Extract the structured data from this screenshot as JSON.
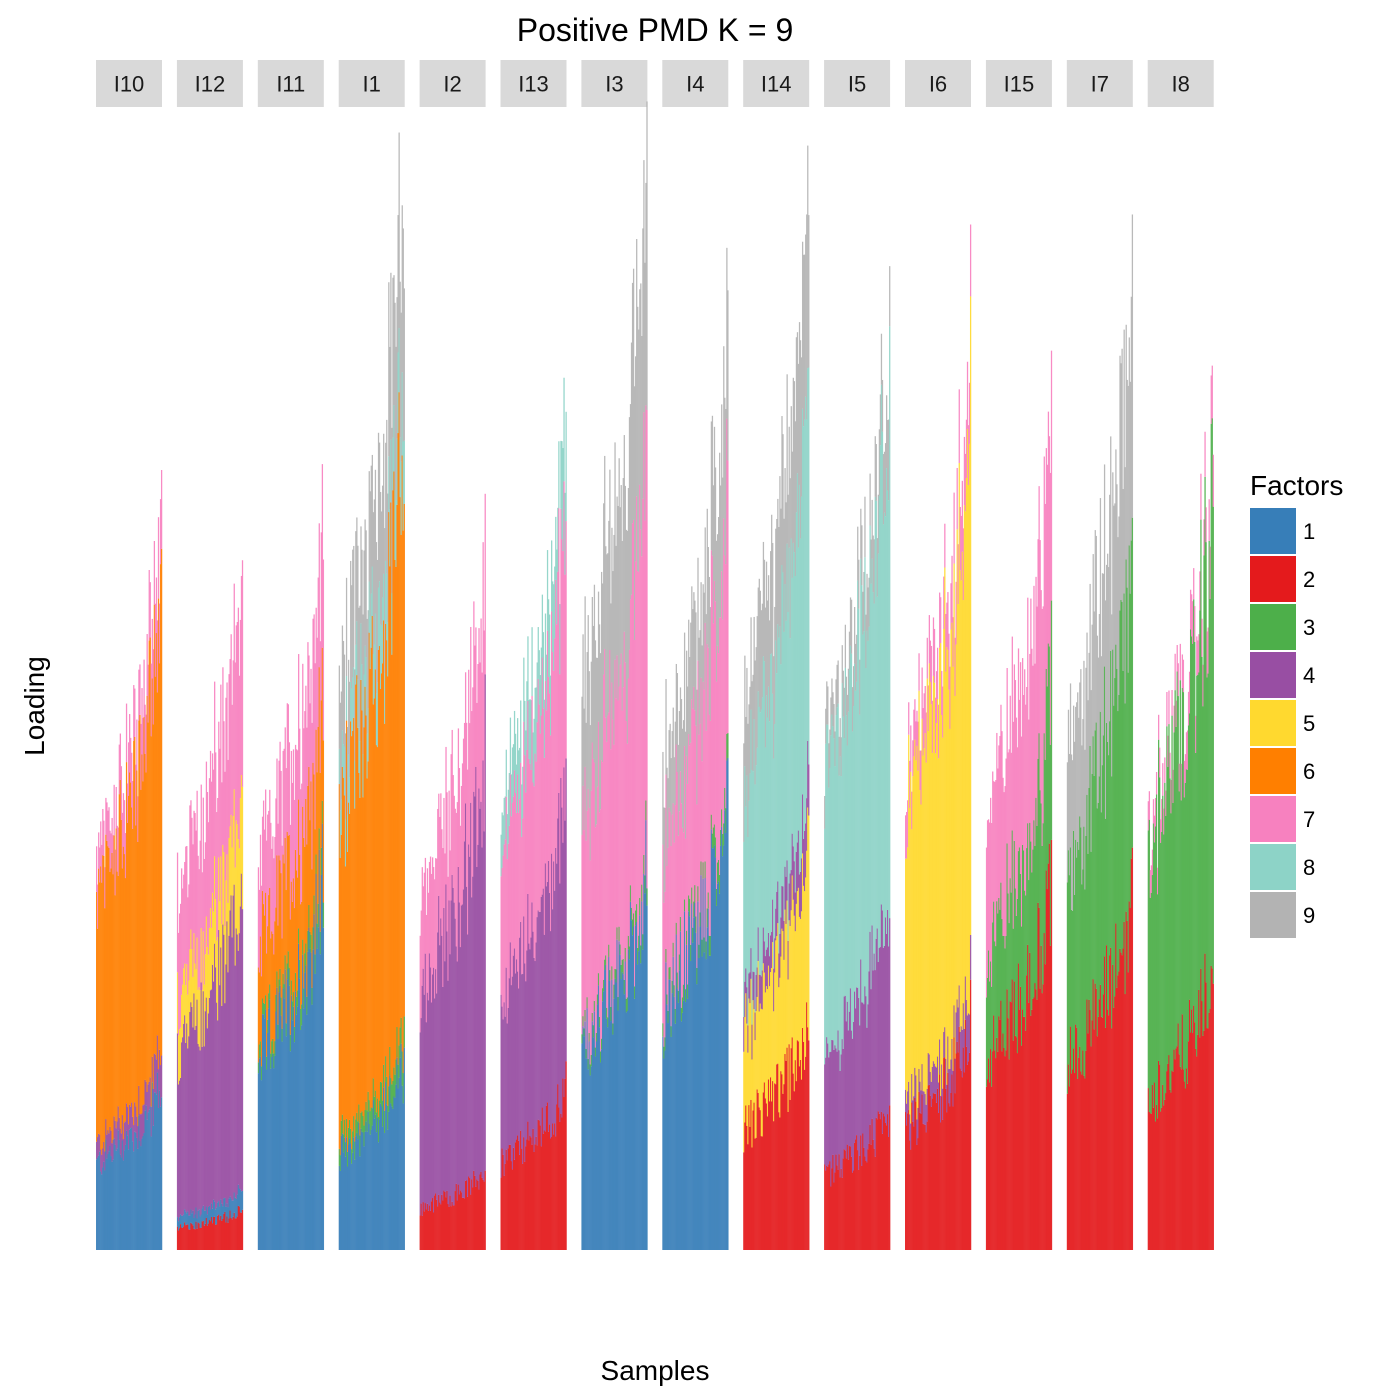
{
  "chart_data": {
    "type": "bar",
    "title": "Positive PMD K = 9",
    "xlabel": "Samples",
    "ylabel": "Loading",
    "stacked": true,
    "grid": false,
    "legend": {
      "title": "Factors",
      "placement": "right",
      "entries": [
        {
          "label": "1",
          "color": "#377eb8"
        },
        {
          "label": "2",
          "color": "#e41a1c"
        },
        {
          "label": "3",
          "color": "#4daf4a"
        },
        {
          "label": "4",
          "color": "#984ea3"
        },
        {
          "label": "5",
          "color": "#ffd92f"
        },
        {
          "label": "6",
          "color": "#ff7f00"
        },
        {
          "label": "7",
          "color": "#f781bf"
        },
        {
          "label": "8",
          "color": "#8dd3c7"
        },
        {
          "label": "9",
          "color": "#b3b3b3"
        }
      ]
    },
    "facets": [
      {
        "label": "I10",
        "max_total": 0.67,
        "bands": [
          [
            1,
            0.09
          ],
          [
            4,
            0.02
          ],
          [
            6,
            0.25
          ],
          [
            7,
            0.04
          ]
        ]
      },
      {
        "label": "I12",
        "max_total": 0.63,
        "bands": [
          [
            2,
            0.02
          ],
          [
            1,
            0.01
          ],
          [
            4,
            0.15
          ],
          [
            5,
            0.05
          ],
          [
            7,
            0.1
          ]
        ]
      },
      {
        "label": "I11",
        "max_total": 0.67,
        "bands": [
          [
            1,
            0.15
          ],
          [
            3,
            0.01
          ],
          [
            6,
            0.07
          ],
          [
            7,
            0.07
          ]
        ]
      },
      {
        "label": "I1",
        "max_total": 1.0,
        "bands": [
          [
            1,
            0.12
          ],
          [
            3,
            0.02
          ],
          [
            6,
            0.4
          ],
          [
            8,
            0.05
          ],
          [
            9,
            0.12
          ]
        ]
      },
      {
        "label": "I2",
        "max_total": 0.63,
        "bands": [
          [
            2,
            0.05
          ],
          [
            4,
            0.26
          ],
          [
            7,
            0.12
          ]
        ]
      },
      {
        "label": "I13",
        "max_total": 0.77,
        "bands": [
          [
            2,
            0.09
          ],
          [
            4,
            0.17
          ],
          [
            7,
            0.15
          ],
          [
            8,
            0.05
          ]
        ]
      },
      {
        "label": "I3",
        "max_total": 0.99,
        "bands": [
          [
            1,
            0.21
          ],
          [
            3,
            0.01
          ],
          [
            7,
            0.23
          ],
          [
            9,
            0.15
          ]
        ]
      },
      {
        "label": "I4",
        "max_total": 0.85,
        "bands": [
          [
            1,
            0.2
          ],
          [
            3,
            0.01
          ],
          [
            7,
            0.13
          ],
          [
            9,
            0.07
          ]
        ]
      },
      {
        "label": "I14",
        "max_total": 0.96,
        "bands": [
          [
            2,
            0.12
          ],
          [
            5,
            0.1
          ],
          [
            4,
            0.03
          ],
          [
            8,
            0.2
          ],
          [
            9,
            0.1
          ]
        ]
      },
      {
        "label": "I5",
        "max_total": 0.85,
        "bands": [
          [
            2,
            0.1
          ],
          [
            4,
            0.15
          ],
          [
            8,
            0.35
          ],
          [
            9,
            0.05
          ]
        ]
      },
      {
        "label": "I6",
        "max_total": 0.82,
        "bands": [
          [
            2,
            0.15
          ],
          [
            4,
            0.03
          ],
          [
            5,
            0.36
          ],
          [
            7,
            0.05
          ]
        ]
      },
      {
        "label": "I15",
        "max_total": 0.76,
        "bands": [
          [
            2,
            0.16
          ],
          [
            3,
            0.09
          ],
          [
            7,
            0.12
          ]
        ]
      },
      {
        "label": "I7",
        "max_total": 0.89,
        "bands": [
          [
            2,
            0.2
          ],
          [
            3,
            0.2
          ],
          [
            9,
            0.15
          ]
        ]
      },
      {
        "label": "I8",
        "max_total": 0.74,
        "bands": [
          [
            2,
            0.18
          ],
          [
            3,
            0.3
          ],
          [
            7,
            0.03
          ]
        ]
      }
    ]
  }
}
